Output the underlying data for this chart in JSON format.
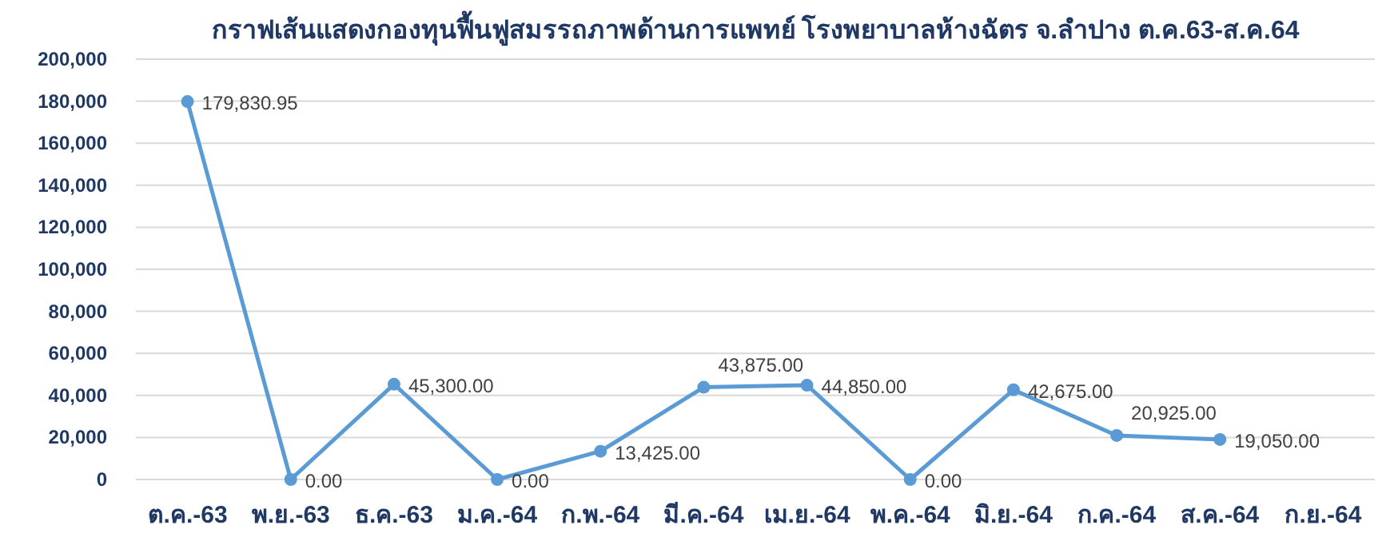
{
  "chart_data": {
    "type": "line",
    "title": "กราฟเส้นแสดงกองทุนฟื้นฟูสมรรถภาพด้านการแพทย์ โรงพยาบาลห้างฉัตร จ.ลำปาง ต.ค.63-ส.ค.64",
    "categories": [
      "ต.ค.-63",
      "พ.ย.-63",
      "ธ.ค.-63",
      "ม.ค.-64",
      "ก.พ.-64",
      "มี.ค.-64",
      "เม.ย.-64",
      "พ.ค.-64",
      "มิ.ย.-64",
      "ก.ค.-64",
      "ส.ค.-64",
      "ก.ย.-64"
    ],
    "series": [
      {
        "color": "#5b9bd5",
        "values": [
          179830.95,
          0,
          45300,
          0,
          13425,
          43875,
          44850,
          0,
          42675,
          20925,
          19050,
          null
        ],
        "value_labels": [
          "179,830.95",
          "0.00",
          "45,300.00",
          "0.00",
          "13,425.00",
          "43,875.00",
          "44,850.00",
          "0.00",
          "42,675.00",
          "20,925.00",
          "19,050.00",
          null
        ]
      }
    ],
    "ylim": [
      0,
      200000
    ],
    "yticks": [
      {
        "value": 0,
        "label": "0"
      },
      {
        "value": 20000,
        "label": "20,000"
      },
      {
        "value": 40000,
        "label": "40,000"
      },
      {
        "value": 60000,
        "label": "60,000"
      },
      {
        "value": 80000,
        "label": "80,000"
      },
      {
        "value": 100000,
        "label": "100,000"
      },
      {
        "value": 120000,
        "label": "120,000"
      },
      {
        "value": 140000,
        "label": "140,000"
      },
      {
        "value": 160000,
        "label": "160,000"
      },
      {
        "value": 180000,
        "label": "180,000"
      },
      {
        "value": 200000,
        "label": "200,000"
      }
    ],
    "grid": "y",
    "marker": "circle",
    "line_style": "solid"
  }
}
